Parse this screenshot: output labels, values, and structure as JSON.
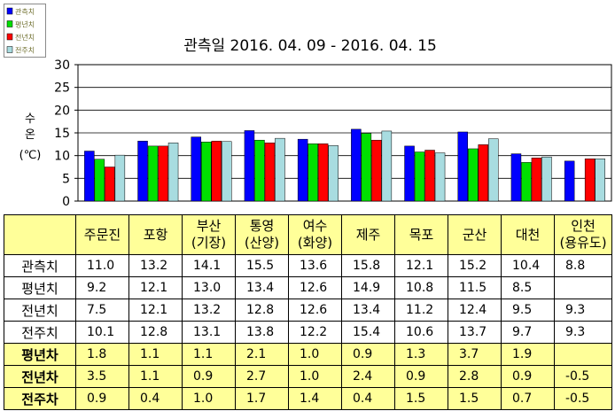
{
  "chart_data": {
    "type": "bar",
    "title": "관측일 2016. 04. 09 - 2016. 04. 15",
    "ylabel": "수 온 (℃)",
    "ylim": [
      0,
      30
    ],
    "yticks": [
      0,
      5,
      10,
      15,
      20,
      25,
      30
    ],
    "grid": true,
    "legend_position": "top-left",
    "categories": [
      "주문진",
      "포항",
      "부산(기장)",
      "통영(산양)",
      "여수(화양)",
      "제주",
      "목포",
      "군산",
      "대천",
      "인천(용유도)"
    ],
    "series": [
      {
        "name": "관측치",
        "color": "#0000FF",
        "values": [
          11.0,
          13.2,
          14.1,
          15.5,
          13.6,
          15.8,
          12.1,
          15.2,
          10.4,
          8.8
        ]
      },
      {
        "name": "평년치",
        "color": "#00E000",
        "values": [
          9.2,
          12.1,
          13.0,
          13.4,
          12.6,
          14.9,
          10.8,
          11.5,
          8.5,
          null
        ]
      },
      {
        "name": "전년치",
        "color": "#FF0000",
        "values": [
          7.5,
          12.1,
          13.2,
          12.8,
          12.6,
          13.4,
          11.2,
          12.4,
          9.5,
          9.3
        ]
      },
      {
        "name": "전주치",
        "color": "#A8DCE0",
        "values": [
          10.1,
          12.8,
          13.1,
          13.8,
          12.2,
          15.4,
          10.6,
          13.7,
          9.7,
          9.3
        ]
      }
    ]
  },
  "table": {
    "rows": [
      {
        "label": "관측치",
        "values": [
          "11.0",
          "13.2",
          "14.1",
          "15.5",
          "13.6",
          "15.8",
          "12.1",
          "15.2",
          "10.4",
          "8.8"
        ]
      },
      {
        "label": "평년치",
        "values": [
          "9.2",
          "12.1",
          "13.0",
          "13.4",
          "12.6",
          "14.9",
          "10.8",
          "11.5",
          "8.5",
          ""
        ]
      },
      {
        "label": "전년치",
        "values": [
          "7.5",
          "12.1",
          "13.2",
          "12.8",
          "12.6",
          "13.4",
          "11.2",
          "12.4",
          "9.5",
          "9.3"
        ]
      },
      {
        "label": "전주치",
        "values": [
          "10.1",
          "12.8",
          "13.1",
          "13.8",
          "12.2",
          "15.4",
          "10.6",
          "13.7",
          "9.7",
          "9.3"
        ]
      },
      {
        "label": "평년차",
        "values": [
          "1.8",
          "1.1",
          "1.1",
          "2.1",
          "1.0",
          "0.9",
          "1.3",
          "3.7",
          "1.9",
          ""
        ]
      },
      {
        "label": "전년차",
        "values": [
          "3.5",
          "1.1",
          "0.9",
          "2.7",
          "1.0",
          "2.4",
          "0.9",
          "2.8",
          "0.9",
          "-0.5"
        ]
      },
      {
        "label": "전주차",
        "values": [
          "0.9",
          "0.4",
          "1.0",
          "1.7",
          "1.4",
          "0.4",
          "1.5",
          "1.5",
          "0.7",
          "-0.5"
        ]
      }
    ]
  }
}
